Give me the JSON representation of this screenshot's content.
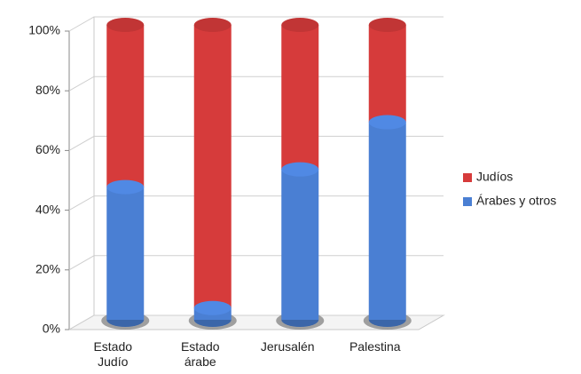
{
  "chart_data": {
    "type": "bar",
    "stacked": true,
    "categories": [
      "Estado Judío",
      "Estado árabe",
      "Jerusalén",
      "Palestina"
    ],
    "series": [
      {
        "name": "Árabes y otros",
        "color": "#4a7fd3",
        "values": [
          45,
          4,
          51,
          67
        ]
      },
      {
        "name": "Judíos",
        "color": "#d63b3b",
        "values": [
          55,
          96,
          49,
          33
        ]
      }
    ],
    "ylim": [
      0,
      100
    ],
    "yticks": [
      {
        "value": 0,
        "label": "0%"
      },
      {
        "value": 20,
        "label": "20%"
      },
      {
        "value": 40,
        "label": "40%"
      },
      {
        "value": 60,
        "label": "60%"
      },
      {
        "value": 80,
        "label": "80%"
      },
      {
        "value": 100,
        "label": "100%"
      }
    ],
    "grid": true,
    "legend": "right"
  }
}
